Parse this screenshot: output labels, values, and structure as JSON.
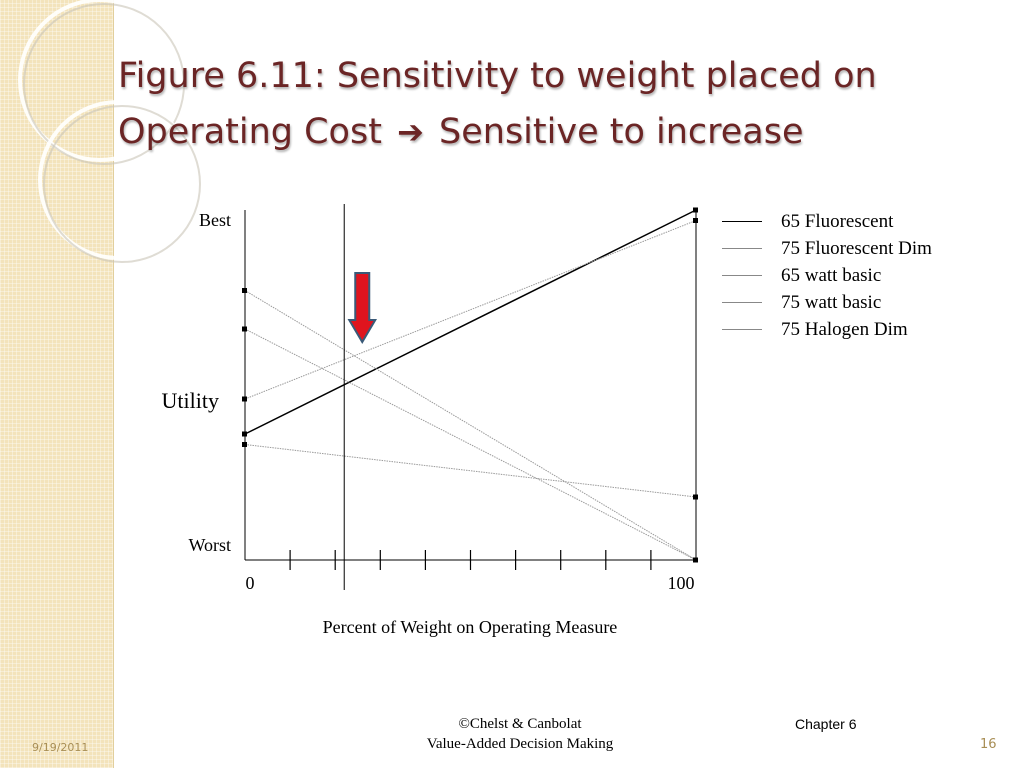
{
  "slide": {
    "title_part1": "Figure 6.11: Sensitivity to weight placed on Operating Cost",
    "title_arrow": "➔",
    "title_part2": "Sensitive to increase",
    "date": "9/19/2011",
    "copyright_line1": "©Chelst & Canbolat",
    "copyright_line2": "Value-Added Decision Making",
    "chapter": "Chapter 6",
    "page_number": "16"
  },
  "colors": {
    "title": "#6b2525",
    "sidebar": "#f3e3bb",
    "arrow_fill": "#e0141e",
    "arrow_outline": "#3a5a78"
  },
  "chart_data": {
    "type": "line",
    "xlabel": "Percent of Weight on Operating Measure",
    "ylabel": "Utility",
    "y_top_label": "Best",
    "y_bottom_label": "Worst",
    "x_tick_labels": [
      "0",
      "100"
    ],
    "xlim": [
      0,
      100
    ],
    "ylim": [
      0,
      1
    ],
    "minor_x_ticks": [
      10,
      20,
      30,
      40,
      50,
      60,
      70,
      80,
      90
    ],
    "current_weight_line_x": 22,
    "arrow_x": 26,
    "series": [
      {
        "name": "65 Fluorescent",
        "x": [
          0,
          100
        ],
        "y": [
          0.36,
          1.0
        ],
        "style": "solid"
      },
      {
        "name": "75 Fluorescent Dim",
        "x": [
          0,
          100
        ],
        "y": [
          0.46,
          0.97
        ],
        "style": "dotted"
      },
      {
        "name": "65 watt basic",
        "x": [
          0,
          100
        ],
        "y": [
          0.33,
          0.18
        ],
        "style": "dotted"
      },
      {
        "name": "75 watt basic",
        "x": [
          0,
          100
        ],
        "y": [
          0.77,
          0.0
        ],
        "style": "dotted"
      },
      {
        "name": "75 Halogen Dim",
        "x": [
          0,
          100
        ],
        "y": [
          0.66,
          0.0
        ],
        "style": "dotted"
      }
    ]
  }
}
